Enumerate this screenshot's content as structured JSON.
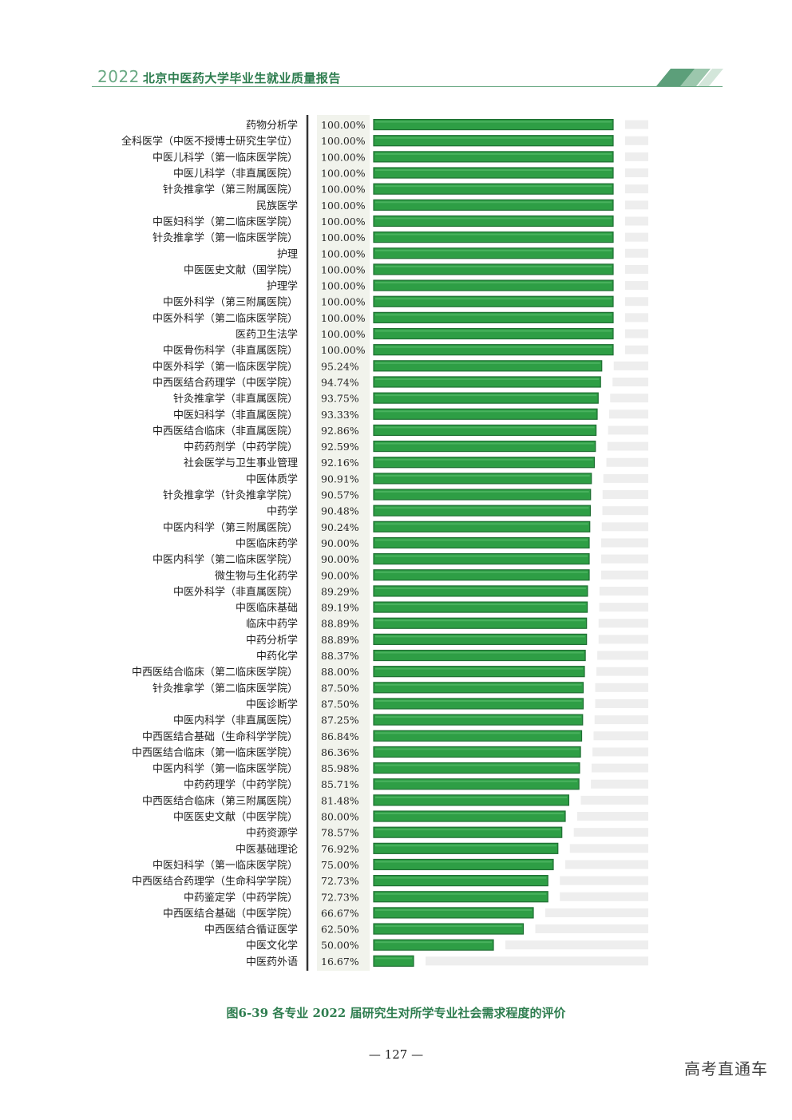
{
  "header": {
    "year": "2022",
    "title": "北京中医药大学毕业生就业质量报告",
    "colors": {
      "accent": "#2e7d4f",
      "light": "#6aa984",
      "pale": "#cfe3d6"
    }
  },
  "chart_data": {
    "type": "bar",
    "orientation": "horizontal",
    "xlim": [
      0,
      100
    ],
    "bar_color": "#2e9e45",
    "track_color": "#eeeeee",
    "value_panel_color": "#f1f3ec",
    "categories": [
      "药物分析学",
      "全科医学（中医不授博士研究生学位）",
      "中医儿科学（第一临床医学院）",
      "中医儿科学（非直属医院）",
      "针灸推拿学（第三附属医院）",
      "民族医学",
      "中医妇科学（第二临床医学院）",
      "针灸推拿学（第一临床医学院）",
      "护理",
      "中医医史文献（国学院）",
      "护理学",
      "中医外科学（第三附属医院）",
      "中医外科学（第二临床医学院）",
      "医药卫生法学",
      "中医骨伤科学（非直属医院）",
      "中医外科学（第一临床医学院）",
      "中西医结合药理学（中医学院）",
      "针灸推拿学（非直属医院）",
      "中医妇科学（非直属医院）",
      "中西医结合临床（非直属医院）",
      "中药药剂学（中药学院）",
      "社会医学与卫生事业管理",
      "中医体质学",
      "针灸推拿学（针灸推拿学院）",
      "中药学",
      "中医内科学（第三附属医院）",
      "中医临床药学",
      "中医内科学（第二临床医学院）",
      "微生物与生化药学",
      "中医外科学（非直属医院）",
      "中医临床基础",
      "临床中药学",
      "中药分析学",
      "中药化学",
      "中西医结合临床（第二临床医学院）",
      "针灸推拿学（第二临床医学院）",
      "中医诊断学",
      "中医内科学（非直属医院）",
      "中西医结合基础（生命科学学院）",
      "中西医结合临床（第一临床医学院）",
      "中医内科学（第一临床医学院）",
      "中药药理学（中药学院）",
      "中西医结合临床（第三附属医院）",
      "中医医史文献（中医学院）",
      "中药资源学",
      "中医基础理论",
      "中医妇科学（第一临床医学院）",
      "中西医结合药理学（生命科学学院）",
      "中药鉴定学（中药学院）",
      "中西医结合基础（中医学院）",
      "中西医结合循证医学",
      "中医文化学",
      "中医药外语"
    ],
    "values": [
      100,
      100,
      100,
      100,
      100,
      100,
      100,
      100,
      100,
      100,
      100,
      100,
      100,
      100,
      100,
      95.24,
      94.74,
      93.75,
      93.33,
      92.86,
      92.59,
      92.16,
      90.91,
      90.57,
      90.48,
      90.24,
      90.0,
      90.0,
      90.0,
      89.29,
      89.19,
      88.89,
      88.89,
      88.37,
      88.0,
      87.5,
      87.5,
      87.25,
      86.84,
      86.36,
      85.98,
      85.71,
      81.48,
      80.0,
      78.57,
      76.92,
      75.0,
      72.73,
      72.73,
      66.67,
      62.5,
      50.0,
      16.67
    ],
    "value_labels": [
      "100.00%",
      "100.00%",
      "100.00%",
      "100.00%",
      "100.00%",
      "100.00%",
      "100.00%",
      "100.00%",
      "100.00%",
      "100.00%",
      "100.00%",
      "100.00%",
      "100.00%",
      "100.00%",
      "100.00%",
      "95.24%",
      "94.74%",
      "93.75%",
      "93.33%",
      "92.86%",
      "92.59%",
      "92.16%",
      "90.91%",
      "90.57%",
      "90.48%",
      "90.24%",
      "90.00%",
      "90.00%",
      "90.00%",
      "89.29%",
      "89.19%",
      "88.89%",
      "88.89%",
      "88.37%",
      "88.00%",
      "87.50%",
      "87.50%",
      "87.25%",
      "86.84%",
      "86.36%",
      "85.98%",
      "85.71%",
      "81.48%",
      "80.00%",
      "78.57%",
      "76.92%",
      "75.00%",
      "72.73%",
      "72.73%",
      "66.67%",
      "62.50%",
      "50.00%",
      "16.67%"
    ]
  },
  "caption": "图6-39 各专业 2022 届研究生对所学专业社会需求程度的评价",
  "page_number": "— 127 —",
  "watermark": "高考直通车"
}
